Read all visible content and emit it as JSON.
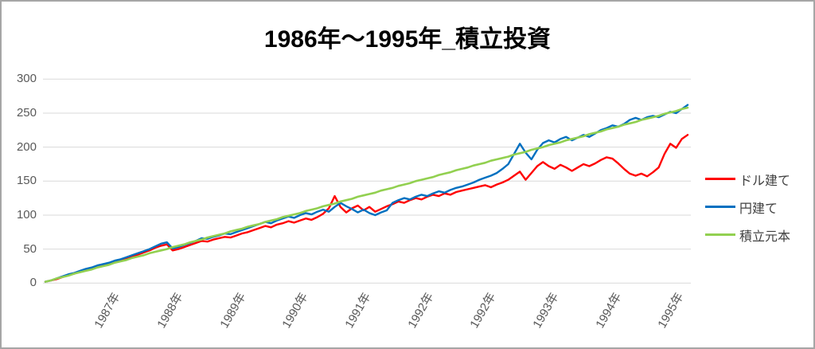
{
  "frame": {
    "background": "#FFFFFF",
    "border_color": "#A6A6A6"
  },
  "colors": {
    "gridline": "#D9D9D9",
    "axis_text": "#595959",
    "title_text": "#000000",
    "legend_text": "#404040"
  },
  "chart_data": {
    "type": "line",
    "title": "1986年～1995年_積立投資",
    "xlabel": "",
    "ylabel": "",
    "ylim": [
      0,
      300
    ],
    "y_ticks": [
      0,
      50,
      100,
      150,
      200,
      250,
      300
    ],
    "x_tick_labels": [
      "1987年",
      "1988年",
      "1989年",
      "1990年",
      "1991年",
      "1992年",
      "1992年",
      "1993年",
      "1994年",
      "1995年"
    ],
    "x_unit": "month",
    "x_range_note": "monthly points from 1986 to 1995",
    "grid": "horizontal",
    "legend_position": "right",
    "series": [
      {
        "name": "ドル建て",
        "key": "usd",
        "color": "#FF0000",
        "values": [
          2,
          4,
          6,
          9,
          12,
          14,
          17,
          19,
          22,
          24,
          26,
          29,
          31,
          34,
          36,
          39,
          42,
          45,
          48,
          52,
          55,
          57,
          48,
          50,
          53,
          56,
          59,
          62,
          61,
          64,
          66,
          68,
          67,
          70,
          73,
          75,
          78,
          81,
          84,
          82,
          86,
          88,
          91,
          89,
          92,
          95,
          93,
          97,
          102,
          110,
          128,
          112,
          104,
          110,
          114,
          107,
          112,
          105,
          109,
          113,
          116,
          120,
          118,
          122,
          125,
          123,
          127,
          130,
          128,
          132,
          130,
          134,
          136,
          138,
          140,
          142,
          144,
          141,
          145,
          148,
          152,
          158,
          164,
          152,
          162,
          172,
          178,
          172,
          168,
          174,
          170,
          165,
          170,
          175,
          172,
          176,
          181,
          185,
          183,
          176,
          168,
          161,
          158,
          161,
          157,
          163,
          170,
          190,
          205,
          199,
          212,
          218
        ]
      },
      {
        "name": "円建て",
        "key": "jpy",
        "color": "#0070C0",
        "values": [
          2,
          4,
          7,
          10,
          13,
          15,
          18,
          21,
          23,
          26,
          28,
          30,
          33,
          35,
          38,
          41,
          44,
          47,
          50,
          54,
          58,
          60,
          51,
          53,
          56,
          59,
          62,
          66,
          65,
          68,
          70,
          73,
          72,
          75,
          78,
          81,
          84,
          87,
          90,
          88,
          92,
          95,
          98,
          96,
          100,
          103,
          101,
          105,
          108,
          105,
          112,
          118,
          113,
          109,
          104,
          108,
          103,
          100,
          104,
          107,
          118,
          122,
          125,
          123,
          127,
          130,
          128,
          132,
          135,
          133,
          137,
          140,
          142,
          145,
          148,
          152,
          155,
          158,
          162,
          168,
          175,
          190,
          205,
          192,
          182,
          196,
          206,
          210,
          207,
          212,
          215,
          210,
          214,
          218,
          215,
          220,
          225,
          228,
          232,
          230,
          234,
          240,
          243,
          240,
          244,
          246,
          244,
          248,
          252,
          250,
          256,
          262
        ]
      },
      {
        "name": "積立元本",
        "key": "principal",
        "color": "#92D050",
        "values": [
          2,
          4,
          7,
          9,
          11,
          14,
          16,
          18,
          20,
          23,
          25,
          27,
          30,
          32,
          34,
          37,
          39,
          41,
          44,
          46,
          48,
          50,
          53,
          55,
          57,
          60,
          62,
          64,
          67,
          69,
          71,
          73,
          76,
          78,
          80,
          83,
          85,
          87,
          90,
          92,
          94,
          97,
          99,
          101,
          103,
          106,
          108,
          110,
          113,
          115,
          117,
          120,
          122,
          124,
          127,
          129,
          131,
          133,
          136,
          138,
          140,
          143,
          145,
          147,
          150,
          152,
          154,
          156,
          159,
          161,
          163,
          166,
          168,
          170,
          173,
          175,
          177,
          180,
          182,
          184,
          186,
          189,
          191,
          193,
          196,
          198,
          200,
          203,
          205,
          207,
          210,
          212,
          214,
          216,
          219,
          221,
          223,
          226,
          228,
          230,
          233,
          235,
          237,
          240,
          242,
          244,
          246,
          249,
          251,
          253,
          256,
          258
        ]
      }
    ]
  }
}
